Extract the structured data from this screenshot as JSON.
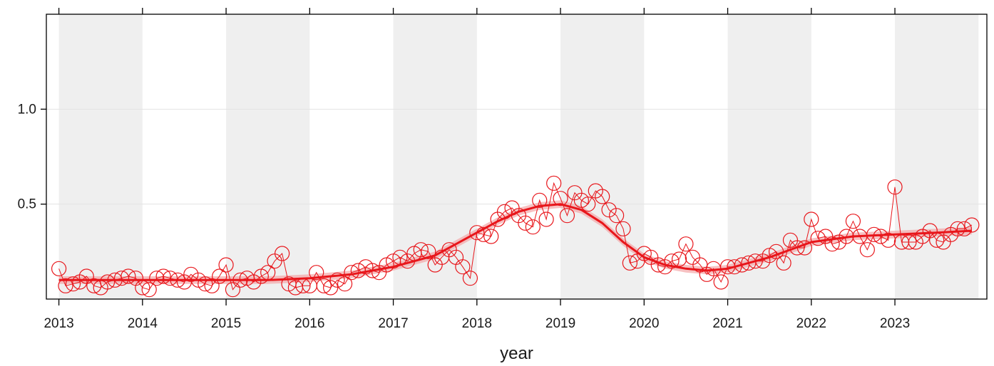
{
  "chart_data": {
    "type": "line",
    "xlabel": "year",
    "ylabel": "",
    "x_ticks": [
      "2013",
      "2014",
      "2015",
      "2016",
      "2017",
      "2018",
      "2019",
      "2020",
      "2021",
      "2022",
      "2023"
    ],
    "y_ticks": [
      "0.5",
      "1.0"
    ],
    "xlim": [
      2012.85,
      2024.1
    ],
    "ylim": [
      0.0,
      1.5
    ],
    "grid": "horizontal gridlines; alternating grey/white year bands",
    "colors": {
      "series": "#e8161b",
      "band": "#efefef",
      "ci": "#f4a6a8"
    },
    "series": [
      {
        "kind": "monthly observations (open circles joined by thin line)",
        "x": [
          2013.0,
          2013.08,
          2013.17,
          2013.25,
          2013.33,
          2013.42,
          2013.5,
          2013.58,
          2013.67,
          2013.75,
          2013.83,
          2013.92,
          2014.0,
          2014.08,
          2014.17,
          2014.25,
          2014.33,
          2014.42,
          2014.5,
          2014.58,
          2014.67,
          2014.75,
          2014.83,
          2014.92,
          2015.0,
          2015.08,
          2015.17,
          2015.25,
          2015.33,
          2015.42,
          2015.5,
          2015.58,
          2015.67,
          2015.75,
          2015.83,
          2015.92,
          2016.0,
          2016.08,
          2016.17,
          2016.25,
          2016.33,
          2016.42,
          2016.5,
          2016.58,
          2016.67,
          2016.75,
          2016.83,
          2016.92,
          2017.0,
          2017.08,
          2017.17,
          2017.25,
          2017.33,
          2017.42,
          2017.5,
          2017.58,
          2017.67,
          2017.75,
          2017.83,
          2017.92,
          2018.0,
          2018.08,
          2018.17,
          2018.25,
          2018.33,
          2018.42,
          2018.5,
          2018.58,
          2018.67,
          2018.75,
          2018.83,
          2018.92,
          2019.0,
          2019.08,
          2019.17,
          2019.25,
          2019.33,
          2019.42,
          2019.5,
          2019.58,
          2019.67,
          2019.75,
          2019.83,
          2019.92,
          2020.0,
          2020.08,
          2020.17,
          2020.25,
          2020.33,
          2020.42,
          2020.5,
          2020.58,
          2020.67,
          2020.75,
          2020.83,
          2020.92,
          2021.0,
          2021.08,
          2021.17,
          2021.25,
          2021.33,
          2021.42,
          2021.5,
          2021.58,
          2021.67,
          2021.75,
          2021.83,
          2021.92,
          2022.0,
          2022.08,
          2022.17,
          2022.25,
          2022.33,
          2022.42,
          2022.5,
          2022.58,
          2022.67,
          2022.75,
          2022.83,
          2022.92,
          2023.0,
          2023.08,
          2023.17,
          2023.25,
          2023.33,
          2023.42,
          2023.5,
          2023.58,
          2023.67,
          2023.75,
          2023.83,
          2023.92
        ],
        "y": [
          0.16,
          0.07,
          0.08,
          0.09,
          0.12,
          0.07,
          0.06,
          0.09,
          0.1,
          0.11,
          0.12,
          0.11,
          0.06,
          0.05,
          0.11,
          0.12,
          0.11,
          0.1,
          0.09,
          0.13,
          0.1,
          0.08,
          0.07,
          0.12,
          0.18,
          0.05,
          0.1,
          0.11,
          0.09,
          0.12,
          0.14,
          0.2,
          0.24,
          0.08,
          0.06,
          0.07,
          0.07,
          0.14,
          0.07,
          0.06,
          0.1,
          0.08,
          0.14,
          0.15,
          0.17,
          0.15,
          0.14,
          0.18,
          0.2,
          0.22,
          0.2,
          0.24,
          0.26,
          0.25,
          0.18,
          0.22,
          0.26,
          0.22,
          0.17,
          0.11,
          0.35,
          0.34,
          0.33,
          0.42,
          0.46,
          0.48,
          0.44,
          0.4,
          0.38,
          0.52,
          0.42,
          0.61,
          0.53,
          0.44,
          0.56,
          0.52,
          0.5,
          0.57,
          0.54,
          0.47,
          0.44,
          0.37,
          0.19,
          0.2,
          0.24,
          0.22,
          0.18,
          0.17,
          0.2,
          0.21,
          0.29,
          0.22,
          0.18,
          0.13,
          0.16,
          0.09,
          0.17,
          0.17,
          0.18,
          0.19,
          0.2,
          0.2,
          0.23,
          0.25,
          0.19,
          0.31,
          0.27,
          0.27,
          0.42,
          0.32,
          0.33,
          0.29,
          0.3,
          0.33,
          0.41,
          0.33,
          0.26,
          0.34,
          0.33,
          0.31,
          0.59,
          0.3,
          0.3,
          0.3,
          0.33,
          0.36,
          0.31,
          0.3,
          0.34,
          0.37,
          0.37,
          0.39
        ]
      },
      {
        "kind": "smooth trend",
        "x": [
          2013.0,
          2013.5,
          2014.0,
          2014.5,
          2015.0,
          2015.5,
          2016.0,
          2016.5,
          2017.0,
          2017.5,
          2018.0,
          2018.25,
          2018.5,
          2018.75,
          2019.0,
          2019.25,
          2019.5,
          2019.75,
          2020.0,
          2020.25,
          2020.5,
          2020.75,
          2021.0,
          2021.5,
          2022.0,
          2022.5,
          2023.0,
          2023.5,
          2023.92
        ],
        "y": [
          0.1,
          0.1,
          0.1,
          0.1,
          0.1,
          0.1,
          0.11,
          0.13,
          0.17,
          0.23,
          0.35,
          0.41,
          0.46,
          0.49,
          0.5,
          0.47,
          0.4,
          0.3,
          0.22,
          0.18,
          0.16,
          0.15,
          0.16,
          0.22,
          0.3,
          0.33,
          0.34,
          0.35,
          0.36
        ]
      }
    ]
  }
}
